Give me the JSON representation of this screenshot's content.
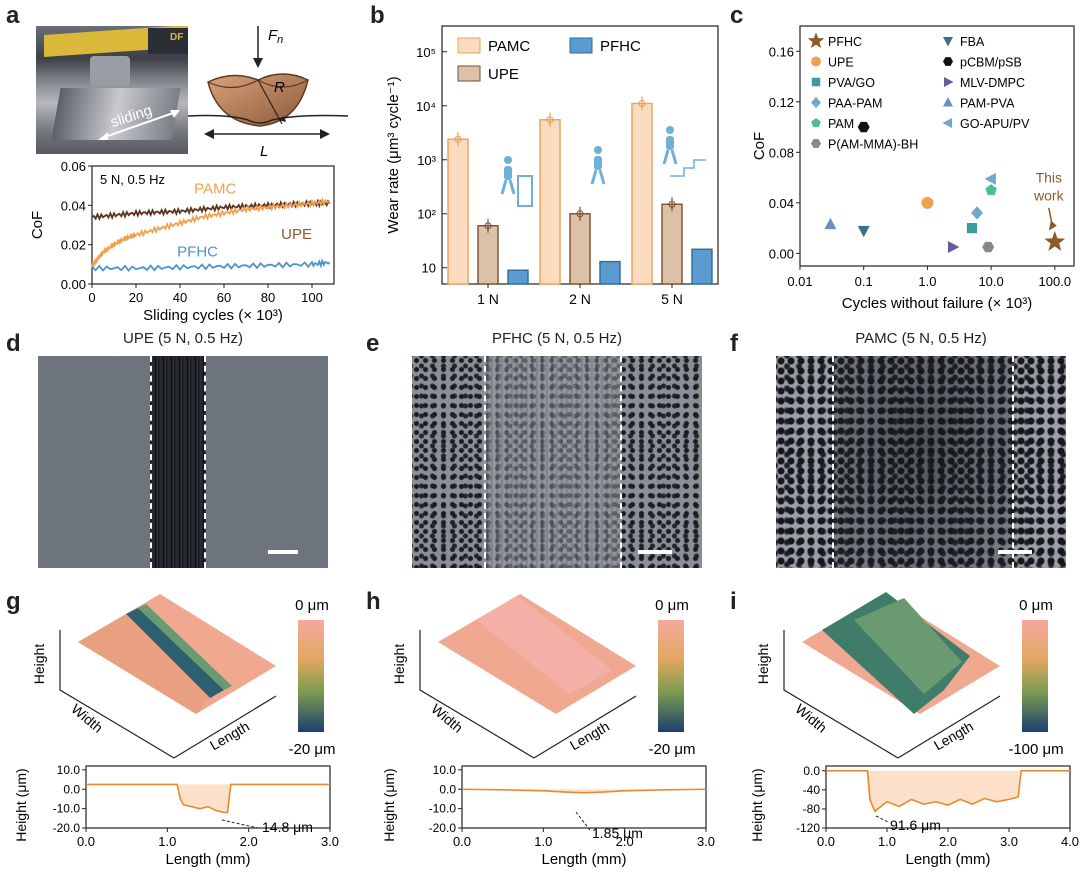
{
  "panel_labels": [
    "a",
    "b",
    "c",
    "d",
    "e",
    "f",
    "g",
    "h",
    "i"
  ],
  "panel_a": {
    "photo_label": "sliding",
    "photo_badge": "DF",
    "schematic_force": "F",
    "schematic_force_sub": "n",
    "schematic_radius": "R",
    "schematic_length": "L"
  },
  "colors": {
    "PAMC": "#f0a050",
    "UPE": "#9a6a40",
    "PFHC": "#4d94c8",
    "PAMC_light": "#fbdcc0",
    "UPE_light": "#dcc0a8",
    "PFHC_bar": "#5b9bd0"
  },
  "chart_data": [
    {
      "id": "a",
      "type": "line",
      "title": "",
      "annotation": "5 N, 0.5 Hz",
      "xlabel": "Sliding cycles (× 10³)",
      "ylabel": "CoF",
      "xlim": [
        0,
        110
      ],
      "ylim": [
        0,
        0.06
      ],
      "xticks": [
        "0",
        "20",
        "40",
        "60",
        "80",
        "100"
      ],
      "yticks": [
        "0.00",
        "0.02",
        "0.04",
        "0.06"
      ],
      "series": [
        {
          "name": "UPE",
          "x": [
            0,
            10,
            20,
            30,
            40,
            50,
            60,
            70,
            80,
            90,
            100,
            108
          ],
          "values": [
            0.034,
            0.035,
            0.036,
            0.0365,
            0.037,
            0.038,
            0.039,
            0.0395,
            0.04,
            0.0405,
            0.041,
            0.041
          ]
        },
        {
          "name": "PAMC",
          "x": [
            0,
            2,
            5,
            10,
            15,
            20,
            30,
            40,
            50,
            60,
            70,
            80,
            90,
            100,
            108
          ],
          "values": [
            0.009,
            0.012,
            0.016,
            0.02,
            0.023,
            0.025,
            0.028,
            0.031,
            0.034,
            0.036,
            0.038,
            0.039,
            0.04,
            0.041,
            0.042
          ]
        },
        {
          "name": "PFHC",
          "x": [
            0,
            20,
            40,
            60,
            80,
            100,
            108
          ],
          "values": [
            0.008,
            0.008,
            0.0085,
            0.009,
            0.0095,
            0.01,
            0.011
          ]
        }
      ]
    },
    {
      "id": "b",
      "type": "bar",
      "categories": [
        "1 N",
        "2 N",
        "5 N"
      ],
      "ylabel": "Wear rate (μm³ cycle⁻¹)",
      "yscale": "log",
      "ylim": [
        5,
        300000
      ],
      "yticks": [
        "10",
        "10²",
        "10³",
        "10⁴",
        "10⁵"
      ],
      "series": [
        {
          "name": "PAMC",
          "values": [
            2400,
            5500,
            11000
          ]
        },
        {
          "name": "UPE",
          "values": [
            60,
            100,
            150
          ]
        },
        {
          "name": "PFHC",
          "values": [
            9,
            13,
            22
          ]
        }
      ]
    },
    {
      "id": "c",
      "type": "scatter",
      "xlabel": "Cycles without failure (× 10³)",
      "ylabel": "CoF",
      "xscale": "log",
      "xlim": [
        0.01,
        200
      ],
      "ylim": [
        -0.01,
        0.18
      ],
      "xticks": [
        "0.01",
        "0.1",
        "1.0",
        "10.0",
        "100.0"
      ],
      "yticks": [
        "0.00",
        "0.04",
        "0.08",
        "0.12",
        "0.16"
      ],
      "annotation": "This\nwork",
      "series": [
        {
          "name": "PFHC",
          "marker": "star",
          "color": "#8b5a2b",
          "x": [
            100
          ],
          "y": [
            0.009
          ]
        },
        {
          "name": "UPE",
          "marker": "circle",
          "color": "#f0a050",
          "x": [
            1
          ],
          "y": [
            0.04
          ]
        },
        {
          "name": "PVA/GO",
          "marker": "square",
          "color": "#3a9d9d",
          "x": [
            5
          ],
          "y": [
            0.02
          ]
        },
        {
          "name": "PAA-PAM",
          "marker": "diamond",
          "color": "#6fa8c8",
          "x": [
            6
          ],
          "y": [
            0.032
          ]
        },
        {
          "name": "PAM",
          "marker": "pentagon",
          "color": "#4cc08a",
          "x": [
            10
          ],
          "y": [
            0.05
          ]
        },
        {
          "name": "P(AM-MMA)-BH",
          "marker": "hexagon",
          "color": "#888888",
          "x": [
            9
          ],
          "y": [
            0.005
          ]
        },
        {
          "name": "FBA",
          "marker": "tri-down",
          "color": "#3d6e8a",
          "x": [
            0.1
          ],
          "y": [
            0.018
          ]
        },
        {
          "name": "pCBM/pSB",
          "marker": "hexagon",
          "color": "#111111",
          "x": [
            0.1
          ],
          "y": [
            0.1
          ]
        },
        {
          "name": "MLV-DMPC",
          "marker": "tri-right",
          "color": "#6a5a9a",
          "x": [
            2.5
          ],
          "y": [
            0.005
          ]
        },
        {
          "name": "PAM-PVA",
          "marker": "tri-up",
          "color": "#6b8fc0",
          "x": [
            0.03
          ],
          "y": [
            0.023
          ]
        },
        {
          "name": "GO-APU/PV",
          "marker": "tri-left",
          "color": "#6fa8d0",
          "x": [
            10
          ],
          "y": [
            0.059
          ]
        }
      ]
    },
    {
      "id": "g",
      "type": "line",
      "xlabel": "Length (mm)",
      "ylabel": "Height (μm)",
      "xlim": [
        0,
        3
      ],
      "ylim": [
        -20,
        12
      ],
      "xticks": [
        "0.0",
        "1.0",
        "2.0",
        "3.0"
      ],
      "yticks": [
        "10.0",
        "0.0",
        "-10.0",
        "-20.0"
      ],
      "annotation": "14.8 μm",
      "series": [
        {
          "name": "",
          "x": [
            0,
            1.12,
            1.16,
            1.2,
            1.3,
            1.4,
            1.5,
            1.6,
            1.7,
            1.74,
            1.78,
            3.0
          ],
          "values": [
            2.5,
            2.5,
            -5,
            -8,
            -9,
            -10,
            -9,
            -11,
            -12,
            -12,
            2.5,
            2.5
          ]
        }
      ]
    },
    {
      "id": "h",
      "type": "line",
      "xlabel": "Length (mm)",
      "ylabel": "Height (μm)",
      "xlim": [
        0,
        3
      ],
      "ylim": [
        -20,
        12
      ],
      "xticks": [
        "0.0",
        "1.0",
        "2.0",
        "3.0"
      ],
      "yticks": [
        "10.0",
        "0.0",
        "-10.0",
        "-20.0"
      ],
      "annotation": "1.85 μm",
      "series": [
        {
          "name": "",
          "x": [
            0,
            0.5,
            1.0,
            1.3,
            1.5,
            1.7,
            2.0,
            2.5,
            3.0
          ],
          "values": [
            0,
            -0.3,
            -0.8,
            -1.5,
            -1.8,
            -1.5,
            -0.8,
            -0.3,
            0
          ]
        }
      ]
    },
    {
      "id": "i",
      "type": "line",
      "xlabel": "Length (mm)",
      "ylabel": "Height (μm)",
      "xlim": [
        0,
        4
      ],
      "ylim": [
        -120,
        10
      ],
      "xticks": [
        "0.0",
        "1.0",
        "2.0",
        "3.0",
        "4.0"
      ],
      "yticks": [
        "0.0",
        "-40",
        "-80",
        "-120"
      ],
      "annotation": "91.6 μm",
      "series": [
        {
          "name": "",
          "x": [
            0,
            0.68,
            0.72,
            0.8,
            1.0,
            1.2,
            1.4,
            1.6,
            1.8,
            2.0,
            2.2,
            2.4,
            2.6,
            2.8,
            3.0,
            3.15,
            3.2,
            4.0
          ],
          "values": [
            0,
            0,
            -60,
            -85,
            -65,
            -75,
            -60,
            -70,
            -65,
            -72,
            -60,
            -70,
            -58,
            -65,
            -60,
            -55,
            0,
            0
          ]
        }
      ]
    }
  ],
  "sem": {
    "d": {
      "title": "UPE (5 N, 0.5 Hz)"
    },
    "e": {
      "title": "PFHC (5 N, 0.5 Hz)"
    },
    "f": {
      "title": "PAMC (5 N, 0.5 Hz)"
    }
  },
  "surface3d": {
    "g": {
      "top": "0 μm",
      "bottom": "-20 μm",
      "axis_height": "Height",
      "axis_width": "Width",
      "axis_length": "Length"
    },
    "h": {
      "top": "0 μm",
      "bottom": "-20 μm",
      "axis_height": "Height",
      "axis_width": "Width",
      "axis_length": "Length"
    },
    "i": {
      "top": "0 μm",
      "bottom": "-100 μm",
      "axis_height": "Height",
      "axis_width": "Width",
      "axis_length": "Length"
    }
  }
}
